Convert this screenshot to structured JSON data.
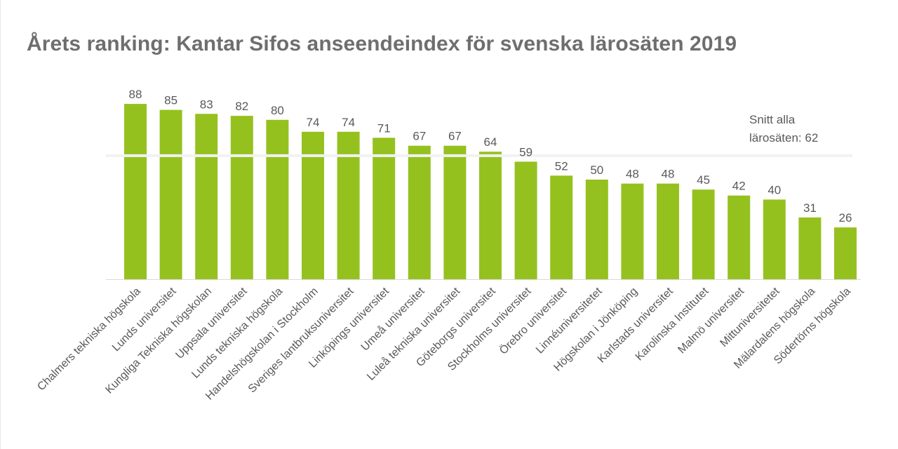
{
  "title": "Årets ranking: Kantar Sifos anseendeindex för svenska lärosäten 2019",
  "colors": {
    "bar": "#95c11f",
    "average_line": "#f2f2f2",
    "axis": "#d9d9d9",
    "text": "#595959",
    "title": "#6e6e6e"
  },
  "chart_data": {
    "type": "bar",
    "title": "Årets ranking: Kantar Sifos anseendeindex för svenska lärosäten 2019",
    "xlabel": "",
    "ylabel": "",
    "ylim": [
      0,
      100
    ],
    "grid": false,
    "categories": [
      "Chalmers tekniska högskola",
      "Lunds universitet",
      "Kungliga Tekniska högskolan",
      "Uppsala universitet",
      "Lunds tekniska högskola",
      "Handelshögskolan i Stockholm",
      "Sveriges lantbruksuniversitet",
      "Linköpings universitet",
      "Umeå universitet",
      "Luleå tekniska universitet",
      "Göteborgs universitet",
      "Stockholms universitet",
      "Örebro universitet",
      "Linnéuniversitetet",
      "Högskolan i Jönköping",
      "Karlstads universitet",
      "Karolinska Institutet",
      "Malmö universitet",
      "Mittuniversitetet",
      "Mälardalens högskola",
      "Södertörns högskola"
    ],
    "values": [
      88,
      85,
      83,
      82,
      80,
      74,
      74,
      71,
      67,
      67,
      64,
      59,
      52,
      50,
      48,
      48,
      45,
      42,
      40,
      31,
      26
    ],
    "average": {
      "value": 62,
      "label_line1": "Snitt alla",
      "label_line2": "lärosäten: 62"
    }
  }
}
